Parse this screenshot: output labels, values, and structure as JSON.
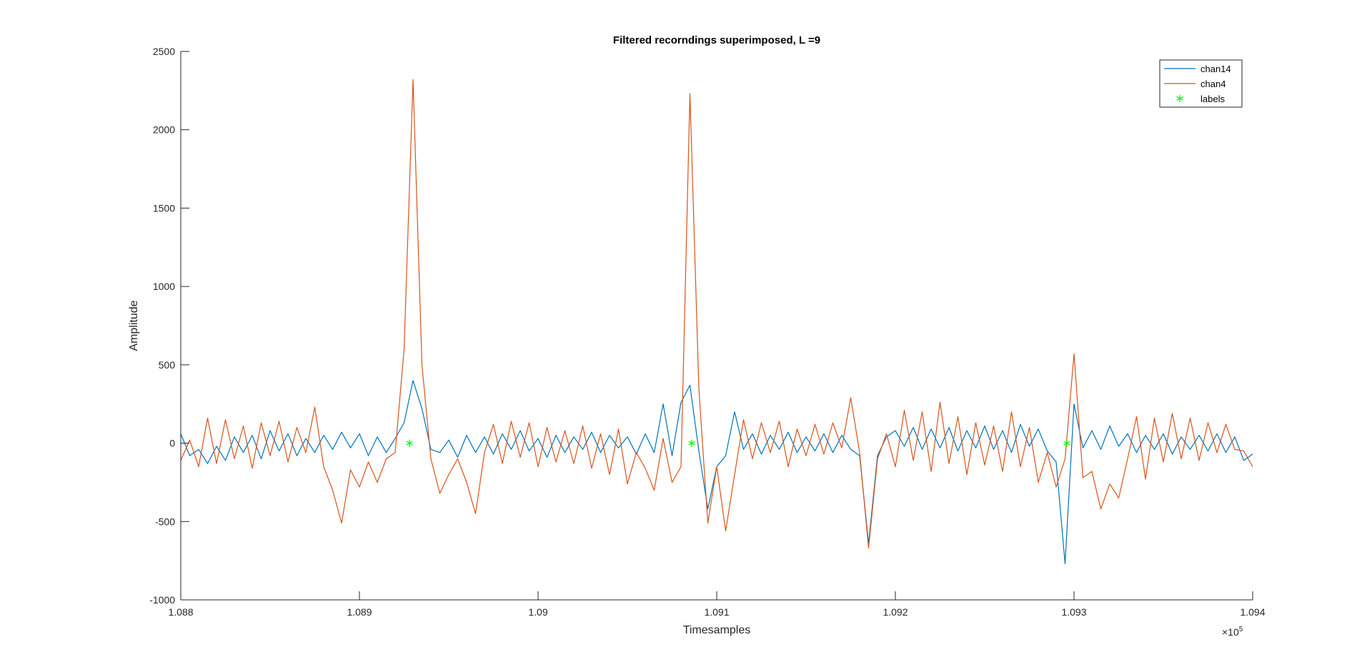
{
  "chart_data": {
    "type": "line",
    "title": "Filtered recorndings superimposed, L =9",
    "xlabel": "Timesamples",
    "ylabel": "Amplitude",
    "x_exponent_label": "×10",
    "x_exponent_power": "5",
    "xlim": [
      1.088,
      1.094
    ],
    "ylim": [
      -1000,
      2500
    ],
    "xticks": [
      1.088,
      1.089,
      1.09,
      1.091,
      1.092,
      1.093,
      1.094
    ],
    "xtick_labels": [
      "1.088",
      "1.089",
      "1.09",
      "1.091",
      "1.092",
      "1.093",
      "1.094"
    ],
    "yticks": [
      -1000,
      -500,
      0,
      500,
      1000,
      1500,
      2000,
      2500
    ],
    "ytick_labels": [
      "-1000",
      "-500",
      "0",
      "500",
      "1000",
      "1500",
      "2000",
      "2500"
    ],
    "grid": false,
    "legend_position": "top-right",
    "series": [
      {
        "name": "chan14",
        "color": "#0072BD",
        "points": [
          [
            1.088,
            60
          ],
          [
            1.08805,
            -80
          ],
          [
            1.0881,
            -40
          ],
          [
            1.08815,
            -130
          ],
          [
            1.0882,
            -20
          ],
          [
            1.08825,
            -110
          ],
          [
            1.0883,
            40
          ],
          [
            1.08835,
            -60
          ],
          [
            1.0884,
            50
          ],
          [
            1.08845,
            -100
          ],
          [
            1.0885,
            80
          ],
          [
            1.08855,
            -50
          ],
          [
            1.0886,
            60
          ],
          [
            1.08865,
            -80
          ],
          [
            1.0887,
            30
          ],
          [
            1.08875,
            -60
          ],
          [
            1.0888,
            50
          ],
          [
            1.08885,
            -40
          ],
          [
            1.0889,
            70
          ],
          [
            1.08895,
            -30
          ],
          [
            1.089,
            60
          ],
          [
            1.08905,
            -80
          ],
          [
            1.0891,
            40
          ],
          [
            1.08915,
            -60
          ],
          [
            1.0892,
            30
          ],
          [
            1.08925,
            130
          ],
          [
            1.0893,
            400
          ],
          [
            1.08935,
            220
          ],
          [
            1.0894,
            -40
          ],
          [
            1.08945,
            -60
          ],
          [
            1.0895,
            20
          ],
          [
            1.08955,
            -90
          ],
          [
            1.0896,
            50
          ],
          [
            1.08965,
            -60
          ],
          [
            1.0897,
            40
          ],
          [
            1.08975,
            -70
          ],
          [
            1.0898,
            60
          ],
          [
            1.08985,
            -40
          ],
          [
            1.0899,
            80
          ],
          [
            1.08995,
            -50
          ],
          [
            1.09,
            30
          ],
          [
            1.09005,
            -90
          ],
          [
            1.0901,
            50
          ],
          [
            1.09015,
            -60
          ],
          [
            1.0902,
            40
          ],
          [
            1.09025,
            -40
          ],
          [
            1.0903,
            70
          ],
          [
            1.09035,
            -60
          ],
          [
            1.0904,
            50
          ],
          [
            1.09045,
            -30
          ],
          [
            1.0905,
            40
          ],
          [
            1.09055,
            -70
          ],
          [
            1.0906,
            60
          ],
          [
            1.09065,
            -60
          ],
          [
            1.0907,
            250
          ],
          [
            1.09075,
            -80
          ],
          [
            1.0908,
            260
          ],
          [
            1.09085,
            370
          ],
          [
            1.0909,
            -50
          ],
          [
            1.09095,
            -420
          ],
          [
            1.091,
            -150
          ],
          [
            1.09105,
            -80
          ],
          [
            1.0911,
            200
          ],
          [
            1.09115,
            -40
          ],
          [
            1.0912,
            60
          ],
          [
            1.09125,
            -70
          ],
          [
            1.0913,
            50
          ],
          [
            1.09135,
            -40
          ],
          [
            1.0914,
            70
          ],
          [
            1.09145,
            -60
          ],
          [
            1.0915,
            40
          ],
          [
            1.09155,
            -50
          ],
          [
            1.0916,
            60
          ],
          [
            1.09165,
            -60
          ],
          [
            1.0917,
            50
          ],
          [
            1.09175,
            -40
          ],
          [
            1.0918,
            -80
          ],
          [
            1.09185,
            -640
          ],
          [
            1.0919,
            -80
          ],
          [
            1.09195,
            40
          ],
          [
            1.092,
            80
          ],
          [
            1.09205,
            -20
          ],
          [
            1.0921,
            100
          ],
          [
            1.09215,
            -40
          ],
          [
            1.0922,
            90
          ],
          [
            1.09225,
            -30
          ],
          [
            1.0923,
            100
          ],
          [
            1.09235,
            -50
          ],
          [
            1.0924,
            80
          ],
          [
            1.09245,
            -30
          ],
          [
            1.0925,
            110
          ],
          [
            1.09255,
            -40
          ],
          [
            1.0926,
            80
          ],
          [
            1.09265,
            -60
          ],
          [
            1.0927,
            120
          ],
          [
            1.09275,
            -20
          ],
          [
            1.0928,
            90
          ],
          [
            1.09285,
            -50
          ],
          [
            1.0929,
            -120
          ],
          [
            1.09295,
            -770
          ],
          [
            1.093,
            250
          ],
          [
            1.09305,
            -30
          ],
          [
            1.0931,
            80
          ],
          [
            1.09315,
            -40
          ],
          [
            1.0932,
            110
          ],
          [
            1.09325,
            -20
          ],
          [
            1.0933,
            60
          ],
          [
            1.09335,
            -60
          ],
          [
            1.0934,
            50
          ],
          [
            1.09345,
            -40
          ],
          [
            1.0935,
            60
          ],
          [
            1.09355,
            -70
          ],
          [
            1.0936,
            40
          ],
          [
            1.09365,
            -40
          ],
          [
            1.0937,
            50
          ],
          [
            1.09375,
            -50
          ],
          [
            1.0938,
            60
          ],
          [
            1.09385,
            -60
          ],
          [
            1.0939,
            40
          ],
          [
            1.09395,
            -110
          ],
          [
            1.094,
            -70
          ]
        ]
      },
      {
        "name": "chan4",
        "color": "#D95319",
        "points": [
          [
            1.088,
            -110
          ],
          [
            1.08805,
            20
          ],
          [
            1.0881,
            -150
          ],
          [
            1.08815,
            160
          ],
          [
            1.0882,
            -130
          ],
          [
            1.08825,
            150
          ],
          [
            1.0883,
            -100
          ],
          [
            1.08835,
            110
          ],
          [
            1.0884,
            -160
          ],
          [
            1.08845,
            130
          ],
          [
            1.0885,
            -80
          ],
          [
            1.08855,
            140
          ],
          [
            1.0886,
            -120
          ],
          [
            1.08865,
            100
          ],
          [
            1.0887,
            -60
          ],
          [
            1.08875,
            230
          ],
          [
            1.0888,
            -150
          ],
          [
            1.08885,
            -300
          ],
          [
            1.0889,
            -510
          ],
          [
            1.08895,
            -170
          ],
          [
            1.089,
            -280
          ],
          [
            1.08905,
            -120
          ],
          [
            1.0891,
            -250
          ],
          [
            1.08915,
            -100
          ],
          [
            1.0892,
            -60
          ],
          [
            1.08925,
            600
          ],
          [
            1.0893,
            2320
          ],
          [
            1.08935,
            500
          ],
          [
            1.0894,
            -100
          ],
          [
            1.08945,
            -320
          ],
          [
            1.0895,
            -200
          ],
          [
            1.08955,
            -100
          ],
          [
            1.0896,
            -250
          ],
          [
            1.08965,
            -450
          ],
          [
            1.0897,
            -60
          ],
          [
            1.08975,
            120
          ],
          [
            1.0898,
            -130
          ],
          [
            1.08985,
            140
          ],
          [
            1.0899,
            -90
          ],
          [
            1.08995,
            130
          ],
          [
            1.09,
            -150
          ],
          [
            1.09005,
            100
          ],
          [
            1.0901,
            -120
          ],
          [
            1.09015,
            80
          ],
          [
            1.0902,
            -130
          ],
          [
            1.09025,
            110
          ],
          [
            1.0903,
            -160
          ],
          [
            1.09035,
            60
          ],
          [
            1.0904,
            -200
          ],
          [
            1.09045,
            90
          ],
          [
            1.0905,
            -260
          ],
          [
            1.09055,
            -60
          ],
          [
            1.0906,
            -160
          ],
          [
            1.09065,
            -300
          ],
          [
            1.0907,
            30
          ],
          [
            1.09075,
            -250
          ],
          [
            1.0908,
            -150
          ],
          [
            1.09085,
            2230
          ],
          [
            1.0909,
            350
          ],
          [
            1.09095,
            -510
          ],
          [
            1.091,
            -150
          ],
          [
            1.09105,
            -560
          ],
          [
            1.0911,
            -200
          ],
          [
            1.09115,
            150
          ],
          [
            1.0912,
            -100
          ],
          [
            1.09125,
            130
          ],
          [
            1.0913,
            -60
          ],
          [
            1.09135,
            140
          ],
          [
            1.0914,
            -150
          ],
          [
            1.09145,
            90
          ],
          [
            1.0915,
            -80
          ],
          [
            1.09155,
            120
          ],
          [
            1.0916,
            -70
          ],
          [
            1.09165,
            130
          ],
          [
            1.0917,
            -30
          ],
          [
            1.09175,
            290
          ],
          [
            1.0918,
            -60
          ],
          [
            1.09185,
            -670
          ],
          [
            1.0919,
            -100
          ],
          [
            1.09195,
            60
          ],
          [
            1.092,
            -150
          ],
          [
            1.09205,
            210
          ],
          [
            1.0921,
            -110
          ],
          [
            1.09215,
            200
          ],
          [
            1.0922,
            -180
          ],
          [
            1.09225,
            260
          ],
          [
            1.0923,
            -130
          ],
          [
            1.09235,
            170
          ],
          [
            1.0924,
            -200
          ],
          [
            1.09245,
            130
          ],
          [
            1.0925,
            -140
          ],
          [
            1.09255,
            110
          ],
          [
            1.0926,
            -180
          ],
          [
            1.09265,
            200
          ],
          [
            1.0927,
            -150
          ],
          [
            1.09275,
            100
          ],
          [
            1.0928,
            -250
          ],
          [
            1.09285,
            -60
          ],
          [
            1.0929,
            -280
          ],
          [
            1.09295,
            -100
          ],
          [
            1.093,
            570
          ],
          [
            1.09305,
            -220
          ],
          [
            1.0931,
            -180
          ],
          [
            1.09315,
            -420
          ],
          [
            1.0932,
            -260
          ],
          [
            1.09325,
            -350
          ],
          [
            1.0933,
            -100
          ],
          [
            1.09335,
            170
          ],
          [
            1.0934,
            -230
          ],
          [
            1.09345,
            160
          ],
          [
            1.0935,
            -120
          ],
          [
            1.09355,
            190
          ],
          [
            1.0936,
            -100
          ],
          [
            1.09365,
            160
          ],
          [
            1.0937,
            -110
          ],
          [
            1.09375,
            130
          ],
          [
            1.0938,
            -60
          ],
          [
            1.09385,
            120
          ],
          [
            1.0939,
            -40
          ],
          [
            1.09395,
            -50
          ],
          [
            1.094,
            -150
          ]
        ]
      },
      {
        "name": "labels",
        "color": "#00FF00",
        "marker": "*",
        "points": [
          [
            1.08928,
            0
          ],
          [
            1.09086,
            0
          ],
          [
            1.09296,
            0
          ]
        ]
      }
    ]
  }
}
